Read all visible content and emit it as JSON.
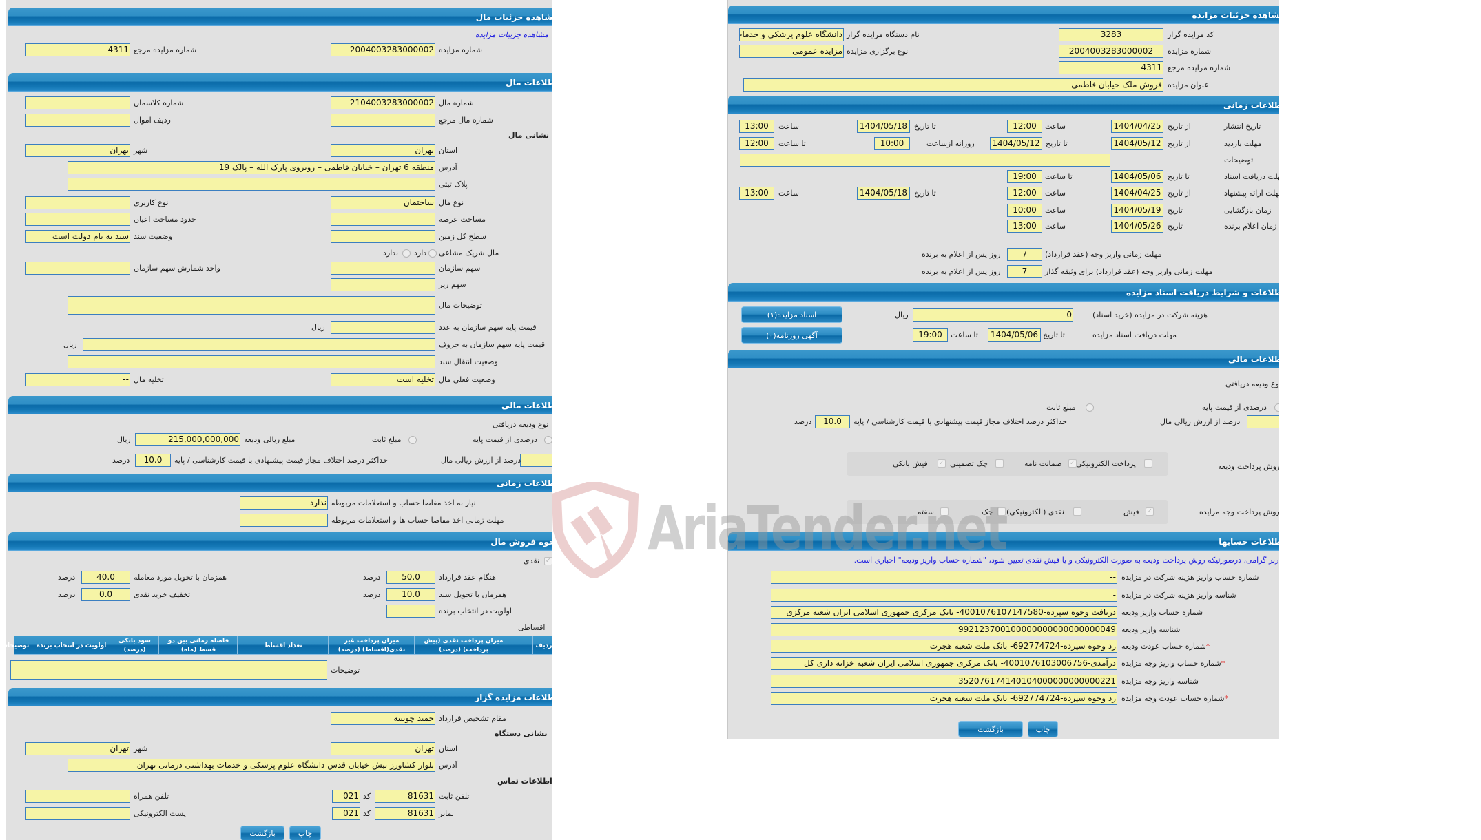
{
  "left": {
    "title": "مشاهده جزئیات مال",
    "link": "مشاهده جزییات مزایده",
    "auction_no_label": "شماره مزایده",
    "auction_no": "2004003283000002",
    "ref_no_label": "شماره مزایده مرجع",
    "ref_no": "4311",
    "item": {
      "title": "اطلاعات مال",
      "item_no_label": "شماره مال",
      "item_no": "2104003283000002",
      "class_no_label": "شماره کلاسمان",
      "ref_item_label": "شماره مال مرجع",
      "asset_row_label": "ردیف اموال",
      "address_title": "نشانی مال",
      "province_label": "استان",
      "province": "تهران",
      "city_label": "شهر",
      "city": "تهران",
      "address_label": "آدرس",
      "address": "منطقه 6 تهران – خیابان فاطمی – روبروی پارک الله – پالک 19",
      "plate_label": "پلاک ثبتی",
      "type_label": "نوع مال",
      "type": "ساختمان",
      "usage_label": "نوع کاربری",
      "land_area_label": "مساحت عرصه",
      "building_area_label": "حدود مساحت اعیان",
      "land_total_label": "سطح کل زمین",
      "deed_status_label": "وضعیت سند",
      "deed_status": "سند به نام دولت است",
      "shared_label": "مال شریک مشاعی",
      "has": "دارد",
      "has_not": "ندارد",
      "org_share_label": "سهم سازمان",
      "share_unit_label": "واحد شمارش سهم سازمان",
      "sub_share_label": "سهم ریز",
      "desc_label": "توضیحات مال",
      "base_price_num_label": "قیمت پایه سهم سازمان به عدد",
      "base_price_words_label": "قیمت پایه سهم سازمان به حروف",
      "rial": "ریال",
      "transfer_label": "وضعیت انتقال سند",
      "current_status_label": "وضعیت فعلی مال",
      "current_status": "تخلیه است",
      "evacuation_label": "تخلیه مال",
      "evacuation": "--"
    },
    "financial": {
      "title": "اطلاعات مالی",
      "deposit_type_label": "نوع ودیعه دریافتی",
      "percent_option": "درصدی از قیمت پایه",
      "fixed_option": "مبلغ ثابت",
      "deposit_amount_label": "مبلغ ریالی ودیعه",
      "deposit_amount": "215,000,000,000",
      "rial": "ریال",
      "percent_of_value_label": "درصد از ارزش ریالی مال",
      "max_diff_label": "حداکثر درصد اختلاف مجاز قیمت پیشنهادی با قیمت کارشناسی / پایه",
      "max_diff": "10.0",
      "percent": "درصد"
    },
    "timing": {
      "title": "اطلاعات زمانی",
      "need_label": "نیاز به اخذ مفاصا حساب و استعلامات مربوطه",
      "need": "ندارد",
      "deadline_label": "مهلت زمانی اخذ مفاصا حساب ها و استعلامات مربوطه"
    },
    "sale": {
      "title": "نحوه فروش مال",
      "cash": "نقدی",
      "cash_checked": true,
      "on_contract_label": "هنگام عقد قرارداد",
      "on_contract": "50.0",
      "with_delivery_label": "همزمان با تحویل مورد معامله",
      "with_delivery": "40.0",
      "with_deed_label": "همزمان با تحویل سند",
      "with_deed": "10.0",
      "discount_label": "تخفیف خرید نقدی",
      "discount": "0.0",
      "priority_label": "اولویت در انتخاب برنده",
      "percent": "درصد",
      "installment": "اقساطی",
      "table_headers": [
        "ردیف",
        "میزان پرداخت نقدی (پیش پرداخت) (درصد)",
        "میزان پرداخت غیر نقدی(اقساط) (درصد)",
        "تعداد اقساط",
        "فاصله زمانی بین دو قسط (ماه)",
        "سود بانکی (درصد)",
        "اولویت در انتخاب برنده",
        "توضیحات"
      ],
      "desc_label": "توضیحات"
    },
    "auctioneer": {
      "title": "اطلاعات مزایده گزار",
      "authority_label": "مقام تشخیص قرارداد",
      "authority": "حمید چوبینه",
      "address_title": "نشانی دستگاه",
      "province_label": "استان",
      "province": "تهران",
      "city_label": "شهر",
      "city": "تهران",
      "address_label": "آدرس",
      "address": "بلوار کشاورز نبش خیابان قدس دانشگاه علوم پزشکی و خدمات بهداشتی درمانی تهران",
      "contact_title": "اطلاعات تماس",
      "phone_label": "تلفن ثابت",
      "phone": "81631",
      "code_label": "کد",
      "phone_code": "021",
      "mobile_label": "تلفن همراه",
      "fax_label": "نمابر",
      "fax": "81631",
      "fax_code": "021",
      "email_label": "پست الکترونیکی"
    },
    "buttons": {
      "print": "چاپ",
      "back": "بازگشت"
    }
  },
  "right": {
    "title": "مشاهده جزئیات مزایده",
    "auctioneer_code_label": "کد مزایده گزار",
    "auctioneer_code": "3283",
    "org_name_label": "نام دستگاه مزایده گزار",
    "org_name": "دانشگاه علوم پزشکی و خدمات بهداشتی درمانی تهران",
    "auction_no_label": "شماره مزایده",
    "auction_no": "2004003283000002",
    "auction_type_label": "نوع برگزاری مزایده",
    "auction_type": "مزایده عمومی",
    "ref_no_label": "شماره مزایده مرجع",
    "ref_no": "4311",
    "subject_label": "عنوان مزایده",
    "subject": "فروش ملک خیابان فاطمی",
    "timing": {
      "title": "اطلاعات زمانی",
      "from_date": "از تاریخ",
      "to_date": "تا تاریخ",
      "date": "تاریخ",
      "time": "ساعت",
      "to_time": "تا ساعت",
      "daily_from": "روزانه ازساعت",
      "publish_label": "تاریخ انتشار",
      "publish_from": "1404/04/25",
      "publish_from_time": "12:00",
      "publish_to": "1404/05/18",
      "publish_to_time": "13:00",
      "visit_label": "مهلت بازدید",
      "visit_from": "1404/05/12",
      "visit_to": "1404/05/12",
      "visit_daily_from": "10:00",
      "visit_to_time": "12:00",
      "desc_label": "توضیحات",
      "docs_label": "مهلت دریافت اسناد",
      "docs_to": "1404/05/06",
      "docs_to_time": "19:00",
      "offer_label": "مهلت ارائه پیشنهاد",
      "offer_from": "1404/04/25",
      "offer_from_time": "12:00",
      "offer_to": "1404/05/18",
      "offer_to_time": "13:00",
      "opening_label": "زمان بازگشایی",
      "opening_date": "1404/05/19",
      "opening_time": "10:00",
      "winner_label": "زمان اعلام برنده",
      "winner_date": "1404/05/26",
      "winner_time": "13:00",
      "pay_contract_label": "مهلت زمانی واریز وجه (عقد قرارداد)",
      "pay_contract": "7",
      "pay_pledge_label": "مهلت زمانی واریز وجه (عقد قرارداد) برای وثیقه گذار",
      "pay_pledge": "7",
      "days_after": "روز پس از اعلام به برنده"
    },
    "docs": {
      "title": "اطلاعات و شرایط دریافت اسناد مزایده",
      "fee_label": "هزینه شرکت در مزایده (خرید اسناد)",
      "fee": "0",
      "rial": "ریال",
      "deadline_label": "مهلت دریافت اسناد مزایده",
      "to_date": "تا تاریخ",
      "deadline_date": "1404/05/06",
      "to_time": "تا ساعت",
      "deadline_time": "19:00",
      "docs_button": "اسناد مزایده(۱)",
      "ads_button": "آگهی روزنامه(۰)"
    },
    "financial": {
      "title": "اطلاعات مالی",
      "deposit_type_label": "نوع ودیعه دریافتی",
      "percent_option": "درصدی از قیمت پایه",
      "fixed_option": "مبلغ ثابت",
      "percent_of_value_label": "درصد از ارزش ریالی مال",
      "max_diff_label": "حداکثر درصد اختلاف مجاز قیمت پیشنهادی با قیمت کارشناسی / پایه",
      "max_diff": "10.0",
      "percent": "درصد",
      "deposit_method_label": "روش پرداخت ودیعه",
      "deposit_methods": [
        {
          "label": "پرداخت الکترونیکی",
          "checked": false
        },
        {
          "label": "ضمانت نامه",
          "checked": true
        },
        {
          "label": "چک تضمینی",
          "checked": false
        },
        {
          "label": "فیش بانکی",
          "checked": true
        }
      ],
      "payment_method_label": "روش پرداخت وجه مزایده",
      "payment_methods": [
        {
          "label": "فیش",
          "checked": true
        },
        {
          "label": "نقدی (الکترونیکی)",
          "checked": false
        },
        {
          "label": "چک",
          "checked": false
        },
        {
          "label": "سفته",
          "checked": false
        }
      ]
    },
    "accounts": {
      "title": "اطلاعات حسابها",
      "notice": "کاربر گرامی، درصورتیکه روش پرداخت ودیعه به صورت الکترونیکی و یا فیش نقدی تعیین شود، \"شماره حساب واریز ودیعه\" اجباری است.",
      "rows": [
        {
          "label": "شماره حساب واریز هزینه شرکت در مزایده",
          "value": "--",
          "required": ""
        },
        {
          "label": "شناسه واریز هزینه شرکت در مزایده",
          "value": "-",
          "required": ""
        },
        {
          "label": "شماره حساب واریز ودیعه",
          "value": "دریافت وجوه سپرده-4001076107147580- بانک مرکزی جمهوری اسلامی ایران شعبه مرکزی",
          "required": ""
        },
        {
          "label": "شناسه واریز ودیعه",
          "value": "992123700100000000000000000049",
          "required": ""
        },
        {
          "label": "شماره حساب عودت ودیعه",
          "value": "رد وجوه سپرده-692774724- بانک ملت شعبه هجرت",
          "required": "*"
        },
        {
          "label": "شماره حساب واریز وجه مزایده",
          "value": "درآمدی-4001076103006756- بانک مرکزی جمهوری اسلامی ایران شعبه خزانه داری کل",
          "required": "*"
        },
        {
          "label": "شناسه واریز وجه مزایده",
          "value": "352076174140104000000000000221",
          "required": ""
        },
        {
          "label": "شماره حساب عودت وجه مزایده",
          "value": "رد وجوه سپرده-692774724- بانک ملت شعبه هجرت",
          "required": "*"
        }
      ]
    },
    "buttons": {
      "print": "چاپ",
      "back": "بازگشت"
    }
  },
  "watermark": "AriaTender.net",
  "colors": {
    "header": "#0a6aa8",
    "field": "#f6f4a6",
    "panel": "#e1e1e1",
    "link": "#2020e0",
    "required": "#e0201e",
    "watermark_logo": "#e8c4c4"
  }
}
